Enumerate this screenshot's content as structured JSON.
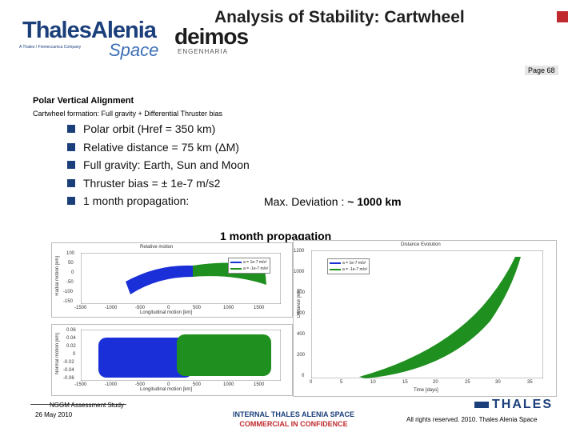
{
  "header": {
    "title": "Analysis of Stability: Cartwheel",
    "logo_thales_alenia": "ThalesAlenia",
    "logo_thales_alenia_tag": "A Thales / Finmeccanica Company",
    "logo_space": "Space",
    "logo_deimos": "deimos",
    "logo_deimos_sub": "ENGENHARIA",
    "page_label": "Page 68",
    "accent_color": "#c0292d",
    "brand_color": "#1b3f7b"
  },
  "section": {
    "title": "Polar Vertical Alignment",
    "subtitle": "Cartwheel formation: Full gravity + Differential Thruster bias"
  },
  "bullets": [
    "Polar orbit (Href =  350 km)",
    "Relative distance = 75 km (ΔM)",
    "Full gravity: Earth, Sun and Moon",
    "Thruster bias = ± 1e-7 m/s2",
    "1 month propagation:"
  ],
  "max_deviation": {
    "label": "Max. Deviation : ",
    "value": "~ 1000 km"
  },
  "caption": "1 month propagation",
  "plots": {
    "relative_motion": {
      "title": "Relative motion",
      "ylabel": "Radial motion [km]",
      "xlabel": "Longitudinal motion [km]",
      "yticks": [
        "100",
        "50",
        "0",
        "-50",
        "-100",
        "-150"
      ],
      "xticks": [
        "-1500",
        "-1000",
        "-500",
        "0",
        "500",
        "1000",
        "1500"
      ],
      "legend": [
        "a = 1e-7 m/s²",
        "a = -1e-7 m/s²"
      ]
    },
    "normal_motion": {
      "ylabel": "Normal motion [km]",
      "xlabel": "Longitudinal motion [km]",
      "yticks": [
        "0.06",
        "0.04",
        "0.02",
        "0",
        "-0.02",
        "-0.04",
        "-0.06"
      ],
      "xticks": [
        "-1500",
        "-1000",
        "-500",
        "0",
        "500",
        "1000",
        "1500"
      ]
    },
    "distance": {
      "title": "Distance Evolution",
      "ylabel": "Distance [km]",
      "xlabel": "Time [days]",
      "yticks": [
        "1200",
        "1000",
        "800",
        "600",
        "400",
        "200",
        "0"
      ],
      "xticks": [
        "0",
        "5",
        "10",
        "15",
        "20",
        "25",
        "30",
        "35"
      ],
      "legend": [
        "a = 1e-7 m/s²",
        "a = -1e-7 m/s²"
      ]
    }
  },
  "footer": {
    "study": "NGGM Assessment Study",
    "date": "26 May 2010",
    "confidential_line1": "INTERNAL THALES ALENIA SPACE",
    "confidential_line2": "COMMERCIAL IN CONFIDENCE",
    "rights": "All rights reserved. 2010. Thales Alenia Space",
    "thales_logo": "THALES"
  }
}
